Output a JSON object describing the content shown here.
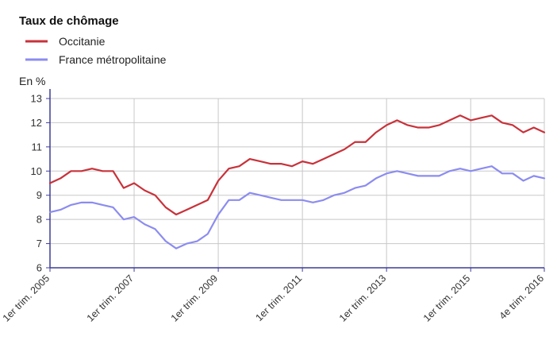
{
  "chart_data": {
    "type": "line",
    "title": "Taux de chômage",
    "ylabel": "En %",
    "xlabel": "",
    "ylim": [
      6,
      13
    ],
    "yticks": [
      "6",
      "7",
      "8",
      "9",
      "10",
      "11",
      "12",
      "13"
    ],
    "grid": true,
    "legend_position": "top-left",
    "x_tick_labels": [
      {
        "label": "1er trim. 2005",
        "index": 0
      },
      {
        "label": "1er trim. 2007",
        "index": 8
      },
      {
        "label": "1er trim. 2009",
        "index": 16
      },
      {
        "label": "1er trim. 2011",
        "index": 24
      },
      {
        "label": "1er trim. 2013",
        "index": 32
      },
      {
        "label": "1er trim. 2015",
        "index": 40
      },
      {
        "label": "4e trim. 2016",
        "index": 47
      }
    ],
    "x": [
      "2005-T1",
      "2005-T2",
      "2005-T3",
      "2005-T4",
      "2006-T1",
      "2006-T2",
      "2006-T3",
      "2006-T4",
      "2007-T1",
      "2007-T2",
      "2007-T3",
      "2007-T4",
      "2008-T1",
      "2008-T2",
      "2008-T3",
      "2008-T4",
      "2009-T1",
      "2009-T2",
      "2009-T3",
      "2009-T4",
      "2010-T1",
      "2010-T2",
      "2010-T3",
      "2010-T4",
      "2011-T1",
      "2011-T2",
      "2011-T3",
      "2011-T4",
      "2012-T1",
      "2012-T2",
      "2012-T3",
      "2012-T4",
      "2013-T1",
      "2013-T2",
      "2013-T3",
      "2013-T4",
      "2014-T1",
      "2014-T2",
      "2014-T3",
      "2014-T4",
      "2015-T1",
      "2015-T2",
      "2015-T3",
      "2015-T4",
      "2016-T1",
      "2016-T2",
      "2016-T3",
      "2016-T4"
    ],
    "series": [
      {
        "name": "Occitanie",
        "color": "#c8323a",
        "values": [
          9.5,
          9.7,
          10.0,
          10.0,
          10.1,
          10.0,
          10.0,
          9.3,
          9.5,
          9.2,
          9.0,
          8.5,
          8.2,
          8.4,
          8.6,
          8.8,
          9.6,
          10.1,
          10.2,
          10.5,
          10.4,
          10.3,
          10.3,
          10.2,
          10.4,
          10.3,
          10.5,
          10.7,
          10.9,
          11.2,
          11.2,
          11.6,
          11.9,
          12.1,
          11.9,
          11.8,
          11.8,
          11.9,
          12.1,
          12.3,
          12.1,
          12.2,
          12.3,
          12.0,
          11.9,
          11.6,
          11.8,
          11.6
        ]
      },
      {
        "name": "France métropolitaine",
        "color": "#8c8cf0",
        "values": [
          8.3,
          8.4,
          8.6,
          8.7,
          8.7,
          8.6,
          8.5,
          8.0,
          8.1,
          7.8,
          7.6,
          7.1,
          6.8,
          7.0,
          7.1,
          7.4,
          8.2,
          8.8,
          8.8,
          9.1,
          9.0,
          8.9,
          8.8,
          8.8,
          8.8,
          8.7,
          8.8,
          9.0,
          9.1,
          9.3,
          9.4,
          9.7,
          9.9,
          10.0,
          9.9,
          9.8,
          9.8,
          9.8,
          10.0,
          10.1,
          10.0,
          10.1,
          10.2,
          9.9,
          9.9,
          9.6,
          9.8,
          9.7
        ]
      }
    ]
  }
}
